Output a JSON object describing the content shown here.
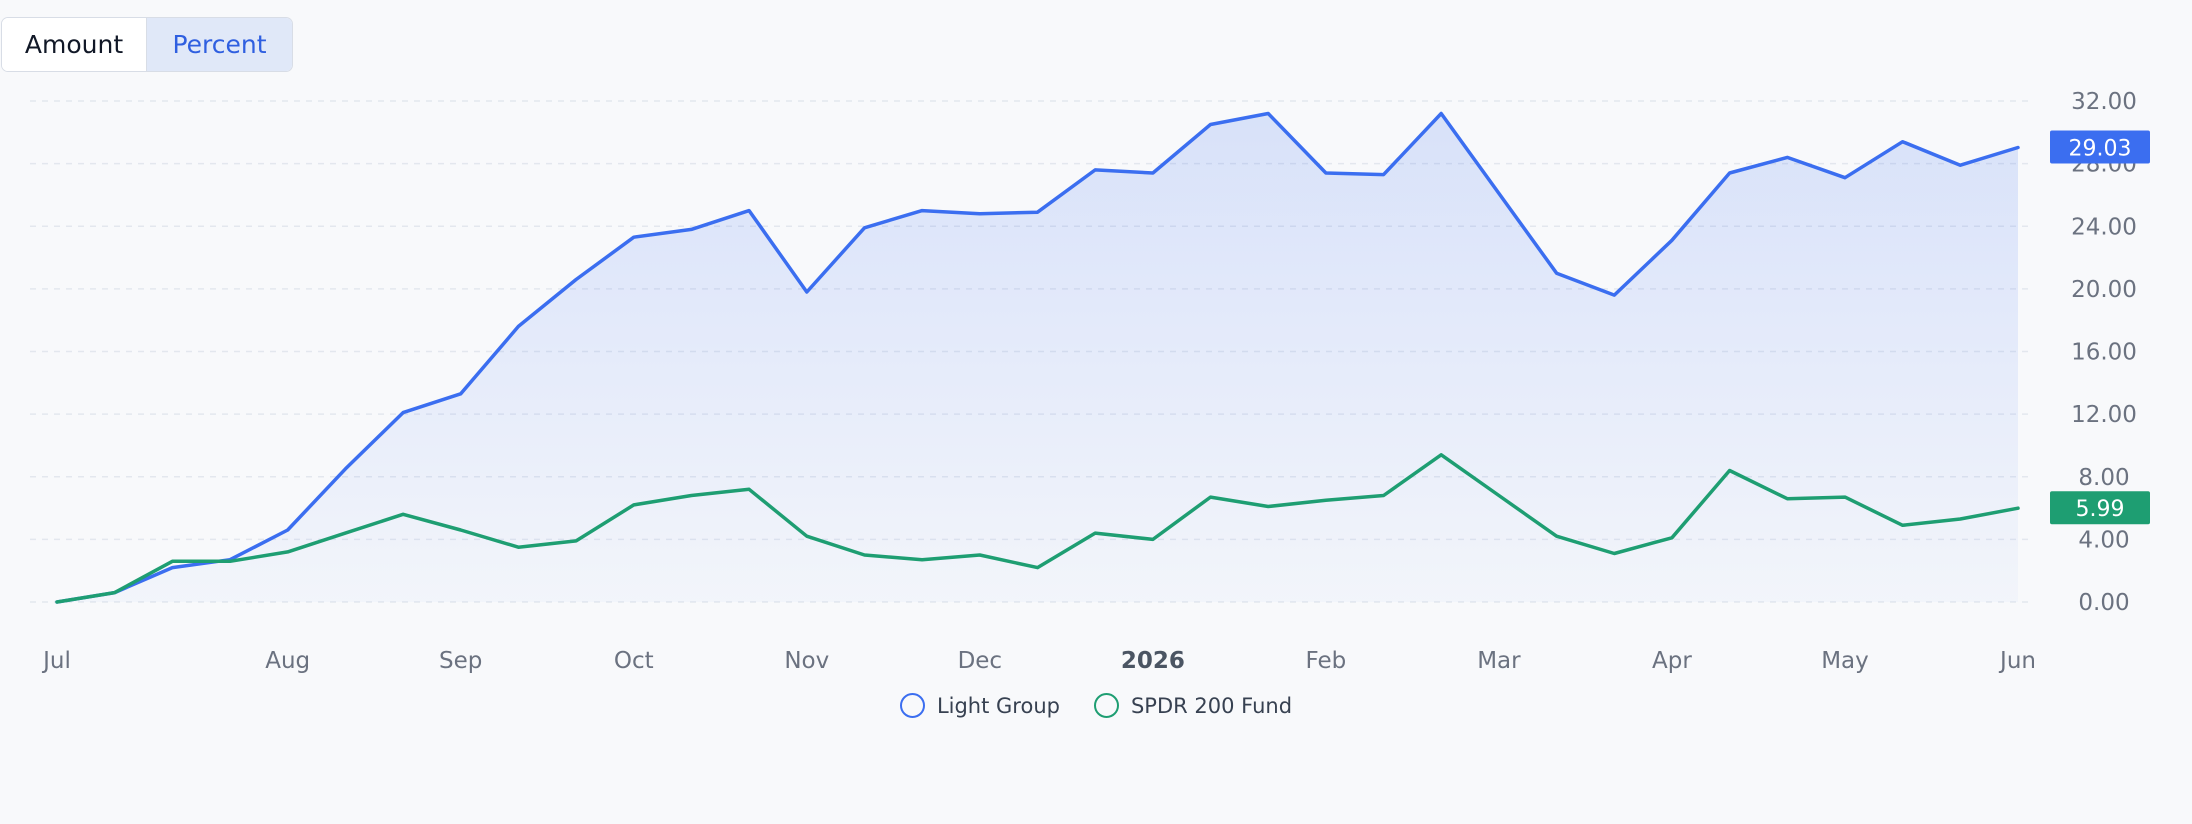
{
  "toggle": {
    "amount_label": "Amount",
    "percent_label": "Percent",
    "selected": "Percent"
  },
  "legend": {
    "items": [
      {
        "label": "Light Group",
        "color": "#3b6ef0"
      },
      {
        "label": "SPDR 200 Fund",
        "color": "#1e9e72"
      }
    ]
  },
  "badges": {
    "light_group": "29.03",
    "spdr": "5.99"
  },
  "chart_data": {
    "type": "line",
    "title": "",
    "xlabel": "",
    "ylabel": "",
    "ylim": [
      0,
      32
    ],
    "grid": true,
    "legend_position": "bottom",
    "y_ticks": [
      "32.00",
      "28.00",
      "24.00",
      "20.00",
      "16.00",
      "12.00",
      "8.00",
      "4.00",
      "0.00"
    ],
    "x_ticks": [
      {
        "label": "Jul",
        "index": 0,
        "bold": false
      },
      {
        "label": "Aug",
        "index": 4,
        "bold": false
      },
      {
        "label": "Sep",
        "index": 7,
        "bold": false
      },
      {
        "label": "Oct",
        "index": 10,
        "bold": false
      },
      {
        "label": "Nov",
        "index": 13,
        "bold": false
      },
      {
        "label": "Dec",
        "index": 16,
        "bold": false
      },
      {
        "label": "2026",
        "index": 19,
        "bold": true
      },
      {
        "label": "Feb",
        "index": 22,
        "bold": false
      },
      {
        "label": "Mar",
        "index": 25,
        "bold": false
      },
      {
        "label": "Apr",
        "index": 28,
        "bold": false
      },
      {
        "label": "May",
        "index": 31,
        "bold": false
      },
      {
        "label": "Jun",
        "index": 34,
        "bold": false
      }
    ],
    "series": [
      {
        "name": "Light Group",
        "color": "#3b6ef0",
        "fill": true,
        "values": [
          0.0,
          0.6,
          2.2,
          2.7,
          4.6,
          8.5,
          12.1,
          13.3,
          17.6,
          20.6,
          23.3,
          23.8,
          25.0,
          19.8,
          23.9,
          25.0,
          24.8,
          24.9,
          27.6,
          27.4,
          30.5,
          31.2,
          27.4,
          27.3,
          31.2,
          26.1,
          21.0,
          19.6,
          23.1,
          27.4,
          28.4,
          27.1,
          29.4,
          27.9,
          29.03
        ]
      },
      {
        "name": "SPDR 200 Fund",
        "color": "#1e9e72",
        "fill": false,
        "values": [
          0.0,
          0.6,
          2.6,
          2.6,
          3.2,
          4.4,
          5.6,
          4.6,
          3.5,
          3.9,
          6.2,
          6.8,
          7.2,
          4.2,
          3.0,
          2.7,
          3.0,
          2.2,
          4.4,
          4.0,
          6.7,
          6.1,
          6.5,
          6.8,
          9.4,
          6.8,
          4.2,
          3.1,
          4.1,
          8.4,
          6.6,
          6.7,
          4.9,
          5.3,
          5.99
        ]
      }
    ]
  }
}
